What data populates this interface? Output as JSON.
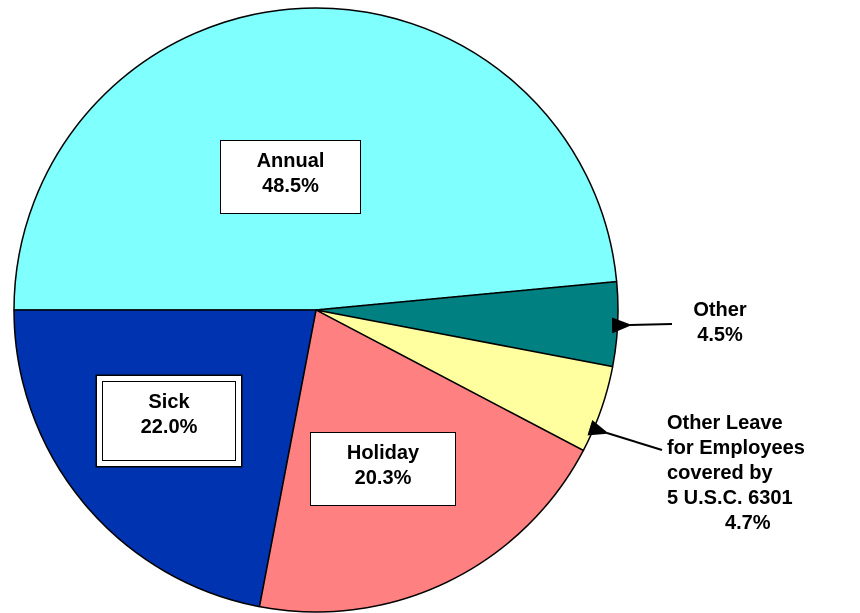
{
  "chart_data": {
    "type": "pie",
    "categories": [
      "Annual",
      "Other",
      "Other Leave\nfor  Employees\ncovered by\n5 U.S.C. 6301",
      "Holiday",
      "Sick"
    ],
    "values": [
      48.5,
      4.5,
      4.7,
      20.3,
      22.0
    ],
    "value_labels": [
      "48.5%",
      "4.5%",
      "4.7%",
      "20.3%",
      "22.0%"
    ],
    "colors": [
      "#80ffff",
      "#008080",
      "#ffffa0",
      "#ff8080",
      "#0033b0"
    ]
  }
}
